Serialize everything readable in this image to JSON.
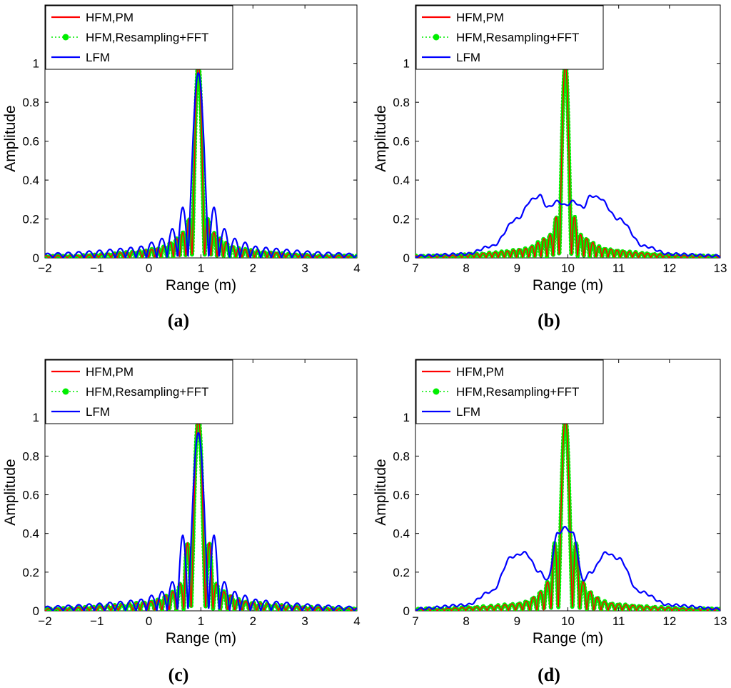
{
  "chart_data": [
    {
      "type": "line",
      "panel_label": "a",
      "xlabel": "Range (m)",
      "ylabel": "Amplitude",
      "xlim": [
        -2,
        4
      ],
      "ylim": [
        0,
        1.3
      ],
      "xticks": [
        "−2",
        "−1",
        "0",
        "1",
        "2",
        "3",
        "4"
      ],
      "yticks": [
        "0",
        "0.2",
        "0.4",
        "0.6",
        "0.8",
        "1"
      ],
      "legend_position": "top-left",
      "legend": [
        "HFM,PM",
        "HFM,Resampling+FFT",
        "LFM"
      ],
      "colors": {
        "hfm_pm": "#ff0000",
        "hfm_resampling": "#00ee00",
        "lfm": "#0000ff"
      },
      "center": 0.95,
      "series": [
        {
          "name": "HFM,PM",
          "peak": 1.0,
          "mainlobe_halfwidth": 0.12,
          "sidelobes": [
            0.2,
            0.13,
            0.1,
            0.08,
            0.06,
            0.05
          ]
        },
        {
          "name": "HFM,Resampling+FFT",
          "peak": 1.0,
          "mainlobe_halfwidth": 0.12,
          "sidelobes": [
            0.2,
            0.13,
            0.1,
            0.08,
            0.06,
            0.05
          ]
        },
        {
          "name": "LFM",
          "peak": 0.95,
          "mainlobe_halfwidth": 0.2,
          "sidelobes": [
            0.26,
            0.15,
            0.1,
            0.08,
            0.06
          ]
        }
      ]
    },
    {
      "type": "line",
      "panel_label": "b",
      "xlabel": "Range (m)",
      "ylabel": "Amplitude",
      "xlim": [
        7,
        13
      ],
      "ylim": [
        0,
        1.3
      ],
      "xticks": [
        "7",
        "8",
        "9",
        "10",
        "11",
        "12",
        "13"
      ],
      "yticks": [
        "0",
        "0.2",
        "0.4",
        "0.6",
        "0.8",
        "1"
      ],
      "legend_position": "top-left",
      "legend": [
        "HFM,PM",
        "HFM,Resampling+FFT",
        "LFM"
      ],
      "colors": {
        "hfm_pm": "#ff0000",
        "hfm_resampling": "#00ee00",
        "lfm": "#0000ff"
      },
      "center": 9.95,
      "series": [
        {
          "name": "HFM,PM",
          "peak": 1.0,
          "mainlobe_halfwidth": 0.12,
          "sidelobes": [
            0.21,
            0.12,
            0.1,
            0.08,
            0.06,
            0.05
          ]
        },
        {
          "name": "HFM,Resampling+FFT",
          "peak": 1.0,
          "mainlobe_halfwidth": 0.12,
          "sidelobes": [
            0.21,
            0.12,
            0.1,
            0.08,
            0.06,
            0.05
          ]
        },
        {
          "name": "LFM",
          "envelope_points": [
            [
              7,
              0.01
            ],
            [
              8,
              0.02
            ],
            [
              8.5,
              0.06
            ],
            [
              9,
              0.2
            ],
            [
              9.3,
              0.3
            ],
            [
              9.45,
              0.32
            ],
            [
              9.6,
              0.26
            ],
            [
              9.8,
              0.29
            ],
            [
              9.95,
              0.27
            ],
            [
              10.1,
              0.29
            ],
            [
              10.3,
              0.26
            ],
            [
              10.45,
              0.32
            ],
            [
              10.6,
              0.31
            ],
            [
              11,
              0.2
            ],
            [
              11.5,
              0.06
            ],
            [
              12,
              0.02
            ],
            [
              13,
              0.01
            ]
          ]
        }
      ]
    },
    {
      "type": "line",
      "panel_label": "c",
      "xlabel": "Range (m)",
      "ylabel": "Amplitude",
      "xlim": [
        -2,
        4
      ],
      "ylim": [
        0,
        1.3
      ],
      "xticks": [
        "−2",
        "−1",
        "0",
        "1",
        "2",
        "3",
        "4"
      ],
      "yticks": [
        "0",
        "0.2",
        "0.4",
        "0.6",
        "0.8",
        "1"
      ],
      "legend_position": "top-left",
      "legend": [
        "HFM,PM",
        "HFM,Resampling+FFT",
        "LFM"
      ],
      "colors": {
        "hfm_pm": "#ff0000",
        "hfm_resampling": "#00ee00",
        "lfm": "#0000ff"
      },
      "center": 0.95,
      "series": [
        {
          "name": "HFM,PM",
          "peak": 1.0,
          "mainlobe_halfwidth": 0.14,
          "sidelobes": [
            0.35,
            0.14,
            0.1,
            0.08,
            0.06,
            0.05
          ]
        },
        {
          "name": "HFM,Resampling+FFT",
          "peak": 1.0,
          "mainlobe_halfwidth": 0.14,
          "sidelobes": [
            0.35,
            0.14,
            0.1,
            0.08,
            0.06,
            0.05
          ]
        },
        {
          "name": "LFM",
          "peak": 0.92,
          "mainlobe_halfwidth": 0.2,
          "sidelobes": [
            0.39,
            0.15,
            0.1,
            0.08,
            0.06
          ]
        }
      ]
    },
    {
      "type": "line",
      "panel_label": "d",
      "xlabel": "Range (m)",
      "ylabel": "Amplitude",
      "xlim": [
        7,
        13
      ],
      "ylim": [
        0,
        1.3
      ],
      "xticks": [
        "7",
        "8",
        "9",
        "10",
        "11",
        "12",
        "13"
      ],
      "yticks": [
        "0",
        "0.2",
        "0.4",
        "0.6",
        "0.8",
        "1"
      ],
      "legend_position": "top-left",
      "legend": [
        "HFM,PM",
        "HFM,Resampling+FFT",
        "LFM"
      ],
      "colors": {
        "hfm_pm": "#ff0000",
        "hfm_resampling": "#00ee00",
        "lfm": "#0000ff"
      },
      "center": 9.95,
      "series": [
        {
          "name": "HFM,PM",
          "peak": 1.0,
          "mainlobe_halfwidth": 0.14,
          "sidelobes": [
            0.35,
            0.15,
            0.1,
            0.07,
            0.05,
            0.04
          ]
        },
        {
          "name": "HFM,Resampling+FFT",
          "peak": 1.0,
          "mainlobe_halfwidth": 0.14,
          "sidelobes": [
            0.35,
            0.15,
            0.1,
            0.07,
            0.05,
            0.04
          ]
        },
        {
          "name": "LFM",
          "envelope_points": [
            [
              7,
              0.01
            ],
            [
              8,
              0.03
            ],
            [
              8.5,
              0.1
            ],
            [
              8.9,
              0.28
            ],
            [
              9.15,
              0.3
            ],
            [
              9.45,
              0.2
            ],
            [
              9.6,
              0.16
            ],
            [
              9.8,
              0.4
            ],
            [
              9.95,
              0.43
            ],
            [
              10.1,
              0.4
            ],
            [
              10.3,
              0.16
            ],
            [
              10.45,
              0.2
            ],
            [
              10.75,
              0.3
            ],
            [
              11,
              0.27
            ],
            [
              11.4,
              0.1
            ],
            [
              12,
              0.03
            ],
            [
              13,
              0.01
            ]
          ]
        }
      ]
    }
  ],
  "captions": [
    "(a)",
    "(b)",
    "(c)",
    "(d)"
  ]
}
